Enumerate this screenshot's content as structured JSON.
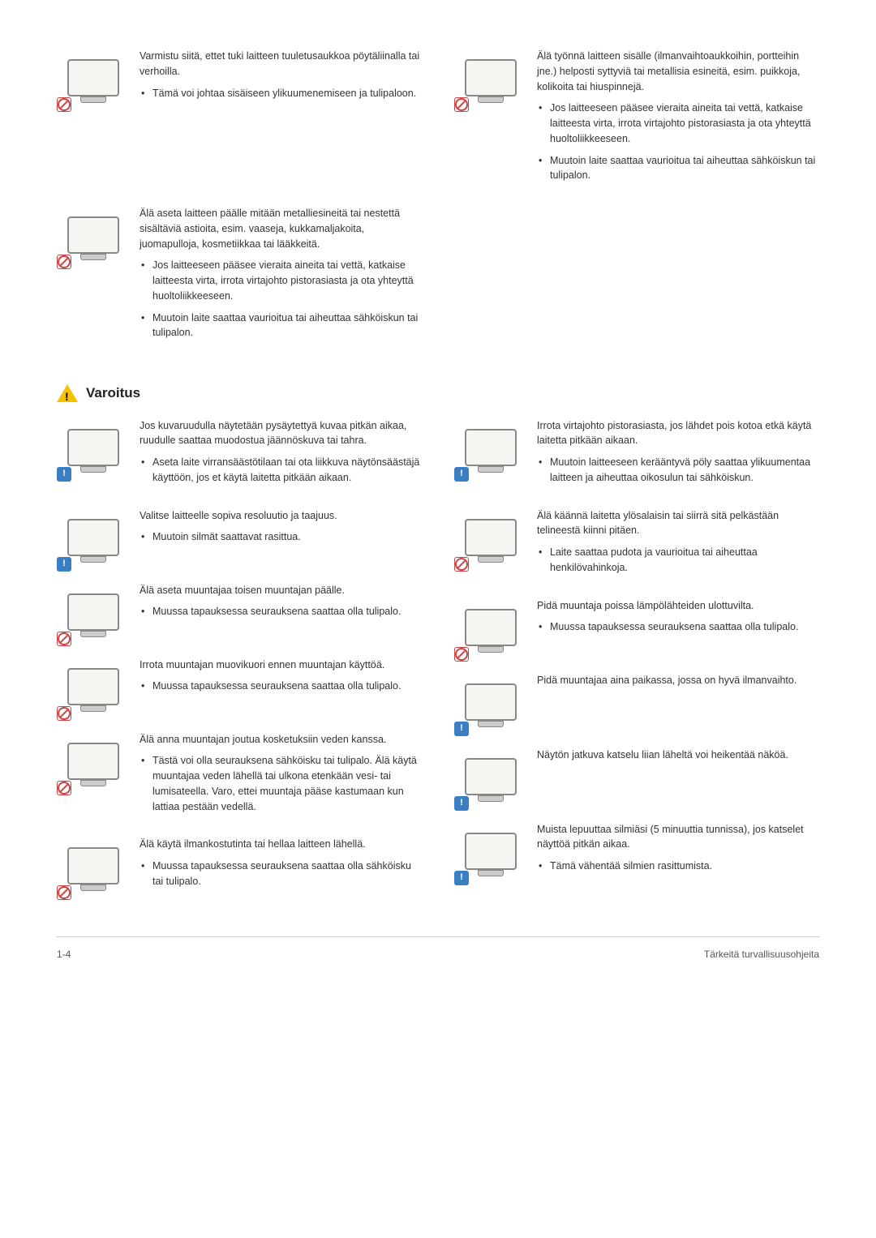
{
  "topRow": {
    "left": {
      "badge": "prohibit",
      "lead": "Varmistu siitä, ettet tuki laitteen tuuletusaukkoa pöytäliinalla tai verhoilla.",
      "bullets": [
        "Tämä voi johtaa sisäiseen ylikuumenemiseen ja tulipaloon."
      ]
    },
    "right": {
      "badge": "prohibit",
      "lead": "Älä työnnä laitteen sisälle (ilmanvaihtoaukkoihin, portteihin jne.) helposti syttyviä tai metallisia esineitä, esim. puikkoja, kolikoita tai hiuspinnejä.",
      "bullets": [
        "Jos laitteeseen pääsee vieraita aineita tai vettä, katkaise laitteesta virta, irrota virtajohto pistorasiasta ja ota yhteyttä huoltoliikkeeseen.",
        "Muutoin laite saattaa vaurioitua tai aiheuttaa sähköiskun tai tulipalon."
      ]
    }
  },
  "second": {
    "badge": "prohibit",
    "lead": "Älä aseta laitteen päälle mitään metalliesineitä tai nestettä sisältäviä astioita, esim. vaaseja, kukkamaljakoita, juomapulloja, kosmetiikkaa tai lääkkeitä.",
    "bullets": [
      "Jos laitteeseen pääsee vieraita aineita tai vettä, katkaise laitteesta virta, irrota virtajohto pistorasiasta ja ota yhteyttä huoltoliikkeeseen.",
      "Muutoin laite saattaa vaurioitua tai aiheuttaa sähköiskun tai tulipalon."
    ]
  },
  "sectionTitle": "Varoitus",
  "leftCol": [
    {
      "badge": "info",
      "lead": "Jos kuvaruudulla näytetään pysäytettyä kuvaa pitkän aikaa, ruudulle saattaa muodostua jäännöskuva tai tahra.",
      "bullets": [
        "Aseta laite virransäästötilaan tai ota liikkuva näytönsäästäjä käyttöön, jos et käytä laitetta pitkään aikaan."
      ]
    },
    {
      "badge": "info",
      "lead": "Valitse laitteelle sopiva resoluutio ja taajuus.",
      "bullets": [
        "Muutoin silmät saattavat rasittua."
      ]
    },
    {
      "badge": "prohibit",
      "lead": "Älä aseta muuntajaa toisen muuntajan päälle.",
      "bullets": [
        "Muussa tapauksessa seurauksena saattaa olla tulipalo."
      ]
    },
    {
      "badge": "prohibit",
      "lead": "Irrota muuntajan muovikuori ennen muuntajan käyttöä.",
      "bullets": [
        "Muussa tapauksessa seurauksena saattaa olla tulipalo."
      ]
    },
    {
      "badge": "prohibit",
      "lead": "Älä anna muuntajan joutua kosketuksiin veden kanssa.",
      "bullets": [
        "Tästä voi olla seurauksena sähköisku tai tulipalo. Älä käytä muuntajaa veden lähellä tai ulkona etenkään vesi- tai lumisateella. Varo, ettei muuntaja pääse kastumaan kun lattiaa pestään vedellä."
      ]
    },
    {
      "badge": "prohibit",
      "lead": "Älä käytä ilmankostutinta tai hellaa laitteen lähellä.",
      "bullets": [
        "Muussa tapauksessa seurauksena saattaa olla sähköisku tai tulipalo."
      ]
    }
  ],
  "rightCol": [
    {
      "badge": "info",
      "lead": "Irrota virtajohto pistorasiasta, jos lähdet pois kotoa etkä käytä laitetta pitkään aikaan.",
      "bullets": [
        "Muutoin laitteeseen kerääntyvä pöly saattaa ylikuumentaa laitteen ja aiheuttaa oikosulun tai sähköiskun."
      ]
    },
    {
      "badge": "prohibit",
      "lead": "Älä käännä laitetta ylösalaisin tai siirrä sitä pelkästään telineestä kiinni pitäen.",
      "bullets": [
        "Laite saattaa pudota ja vaurioitua tai aiheuttaa henkilövahinkoja."
      ]
    },
    {
      "badge": "prohibit",
      "lead": "Pidä muuntaja poissa lämpölähteiden ulottuvilta.",
      "bullets": [
        "Muussa tapauksessa seurauksena saattaa olla tulipalo."
      ]
    },
    {
      "badge": "info",
      "lead": "Pidä muuntajaa aina paikassa, jossa on hyvä ilmanvaihto.",
      "bullets": []
    },
    {
      "badge": "info",
      "lead": "Näytön jatkuva katselu liian läheltä voi heikentää näköä.",
      "bullets": []
    },
    {
      "badge": "info",
      "lead": "Muista lepuuttaa silmiäsi (5 minuuttia tunnissa), jos katselet näyttöä pitkän aikaa.",
      "bullets": [
        "Tämä vähentää silmien rasittumista."
      ]
    }
  ],
  "footer": {
    "page": "1-4",
    "title": "Tärkeitä turvallisuusohjeita"
  }
}
